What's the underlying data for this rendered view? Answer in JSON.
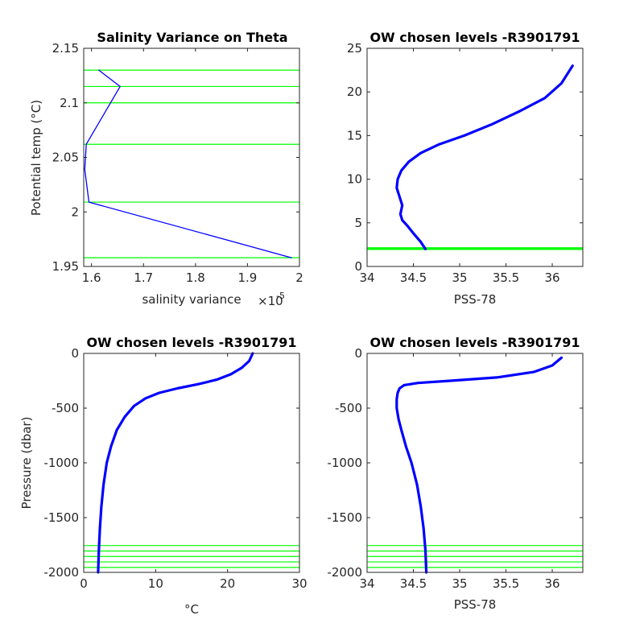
{
  "colors": {
    "data": "#0000ff",
    "levels": "#00ff00",
    "axes": "#262626"
  },
  "chart_data": [
    {
      "id": "p1",
      "type": "line",
      "title": "Salinity Variance on Theta",
      "xlabel": "salinity variance",
      "x_exponent": "×10",
      "x_exponent_power": "-5",
      "ylabel": "Potential temp (°C)",
      "xlim": [
        1.585,
        2.0
      ],
      "ylim": [
        1.95,
        2.15
      ],
      "xticks": [
        "1.6",
        "1.7",
        "1.8",
        "1.9",
        "2"
      ],
      "yticks": [
        "1.95",
        "2",
        "2.05",
        "2.1",
        "2.15"
      ],
      "hlines": [
        1.958,
        2.009,
        2.062,
        2.1,
        2.115,
        2.13
      ],
      "series": [
        {
          "x": [
            1.985,
            1.595,
            1.587,
            1.59,
            1.655,
            1.614
          ],
          "y": [
            1.958,
            2.009,
            2.039,
            2.062,
            2.115,
            2.13
          ]
        }
      ]
    },
    {
      "id": "p2",
      "type": "line",
      "title": "OW chosen levels -R3901791",
      "xlabel": "PSS-78",
      "ylabel": "",
      "xlim": [
        34.0,
        36.33
      ],
      "ylim": [
        0,
        25
      ],
      "xticks": [
        "34",
        "34.5",
        "35",
        "35.5",
        "36"
      ],
      "yticks": [
        "0",
        "5",
        "10",
        "15",
        "20",
        "25"
      ],
      "hlines": [
        1.95,
        2.0,
        2.05,
        2.1,
        2.15
      ],
      "series": [
        {
          "x": [
            34.63,
            34.58,
            34.5,
            34.44,
            34.38,
            34.36,
            34.38,
            34.35,
            34.32,
            34.33,
            34.37,
            34.45,
            34.58,
            34.78,
            35.05,
            35.35,
            35.65,
            35.92,
            36.1,
            36.22
          ],
          "y": [
            2.0,
            2.8,
            3.8,
            4.6,
            5.3,
            6.0,
            7.0,
            8.0,
            9.0,
            10.0,
            11.0,
            12.0,
            13.0,
            14.0,
            15.0,
            16.3,
            17.8,
            19.3,
            21.0,
            23.0
          ]
        }
      ]
    },
    {
      "id": "p3",
      "type": "line",
      "title": "OW chosen levels -R3901791",
      "xlabel": "°C",
      "ylabel": "Pressure (dbar)",
      "xlim": [
        0,
        30
      ],
      "ylim": [
        -2000,
        0
      ],
      "xticks": [
        "0",
        "10",
        "20",
        "30"
      ],
      "yticks": [
        "-2000",
        "-1500",
        "-1000",
        "-500",
        "0"
      ],
      "hlines": [
        -1955,
        -1905,
        -1855,
        -1805,
        -1755
      ],
      "series": [
        {
          "x": [
            2.0,
            2.1,
            2.25,
            2.45,
            2.75,
            3.2,
            3.8,
            4.6,
            5.7,
            7.0,
            8.6,
            10.5,
            13.0,
            16.0,
            18.5,
            20.5,
            22.0,
            23.0,
            23.5
          ],
          "y": [
            -2000,
            -1800,
            -1600,
            -1400,
            -1200,
            -1000,
            -850,
            -700,
            -580,
            -480,
            -410,
            -360,
            -320,
            -280,
            -240,
            -190,
            -130,
            -70,
            0
          ]
        }
      ]
    },
    {
      "id": "p4",
      "type": "line",
      "title": "OW chosen levels -R3901791",
      "xlabel": "PSS-78",
      "ylabel": "",
      "xlim": [
        34.0,
        36.33
      ],
      "ylim": [
        -2000,
        0
      ],
      "xticks": [
        "34",
        "34.5",
        "35",
        "35.5",
        "36"
      ],
      "yticks": [
        "-2000",
        "-1500",
        "-1000",
        "-500",
        "0"
      ],
      "hlines": [
        -1955,
        -1905,
        -1855,
        -1805,
        -1755
      ],
      "series": [
        {
          "x": [
            34.64,
            34.63,
            34.61,
            34.58,
            34.54,
            34.48,
            34.42,
            34.37,
            34.34,
            34.32,
            34.32,
            34.33,
            34.35,
            34.4,
            34.55,
            34.9,
            35.4,
            35.8,
            36.0,
            36.1
          ],
          "y": [
            -2000,
            -1800,
            -1600,
            -1400,
            -1200,
            -1000,
            -850,
            -700,
            -600,
            -500,
            -420,
            -360,
            -320,
            -290,
            -270,
            -250,
            -220,
            -170,
            -110,
            -40
          ]
        }
      ]
    }
  ]
}
